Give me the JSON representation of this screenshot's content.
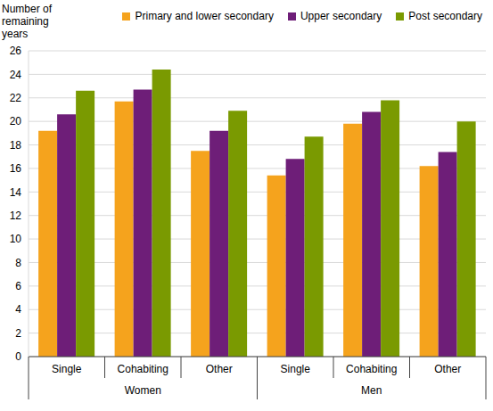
{
  "chart_data": {
    "type": "bar",
    "y_label": "Number of remaining years",
    "categories": [
      "Single",
      "Cohabiting",
      "Other",
      "Single",
      "Cohabiting",
      "Other"
    ],
    "groups": [
      "Women",
      "Men"
    ],
    "series": [
      {
        "name": "Primary and lower secondary",
        "color": "#f5a31d",
        "values": [
          19.2,
          21.7,
          17.5,
          15.4,
          19.8,
          16.2
        ]
      },
      {
        "name": "Upper secondary",
        "color": "#6e1e78",
        "values": [
          20.6,
          22.7,
          19.2,
          16.8,
          20.8,
          17.4
        ]
      },
      {
        "name": "Post secondary",
        "color": "#7a9a01",
        "values": [
          22.6,
          24.4,
          20.9,
          18.7,
          21.8,
          20.0
        ]
      }
    ],
    "ylim": [
      0,
      26
    ],
    "yticks": [
      0,
      2,
      4,
      6,
      8,
      10,
      12,
      14,
      16,
      18,
      20,
      22,
      24,
      26
    ],
    "grid": true,
    "legend": "top"
  }
}
